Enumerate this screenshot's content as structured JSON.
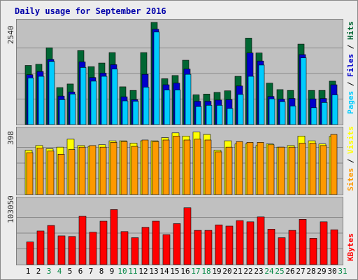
{
  "chart_data": {
    "title": "Daily usage for September 2016",
    "x": [
      1,
      2,
      3,
      4,
      5,
      6,
      7,
      8,
      9,
      10,
      11,
      12,
      13,
      14,
      15,
      16,
      17,
      18,
      19,
      20,
      21,
      22,
      23,
      24,
      25,
      26,
      27,
      28,
      29,
      30,
      31
    ],
    "weekend_days": [
      3,
      4,
      10,
      11,
      17,
      18,
      24,
      25,
      31
    ],
    "colors": {
      "hits": "#006633",
      "files": "#0000cc",
      "pages": "#00ccff",
      "visits": "#ffff00",
      "sites": "#ff9900",
      "kbytes": "#ff0000",
      "weekday_label": "#000000",
      "weekend_label": "#008844"
    },
    "charts": [
      {
        "type": "bar",
        "axis_label": "2540",
        "ylim": [
          0,
          2540
        ],
        "series": [
          {
            "name": "Hits",
            "values": [
              1470,
              1500,
              1910,
              920,
              1010,
              1840,
              1440,
              1530,
              1790,
              940,
              850,
              1790,
              2540,
              1140,
              1220,
              1600,
              740,
              760,
              800,
              840,
              1200,
              2150,
              1780,
              1030,
              870,
              850,
              2000,
              850,
              850,
              1080
            ]
          },
          {
            "name": "Files",
            "values": [
              1240,
              1320,
              1620,
              710,
              810,
              1560,
              1170,
              1280,
              1490,
              690,
              620,
              1250,
              2370,
              990,
              1030,
              1380,
              580,
              580,
              610,
              620,
              960,
              1780,
              1580,
              700,
              630,
              650,
              1740,
              640,
              650,
              990
            ]
          },
          {
            "name": "Pages",
            "values": [
              1160,
              1200,
              1570,
              620,
              760,
              1420,
              1080,
              1200,
              1380,
              590,
              580,
              930,
              2300,
              860,
              860,
              1250,
              450,
              480,
              480,
              400,
              750,
              1200,
              1480,
              640,
              570,
              460,
              1660,
              420,
              550,
              740
            ]
          }
        ]
      },
      {
        "type": "bar",
        "axis_label": "398",
        "ylim": [
          0,
          398
        ],
        "series": [
          {
            "name": "Visits",
            "values": [
              280,
              310,
              290,
              300,
              350,
              310,
              305,
              315,
              340,
              340,
              325,
              340,
              340,
              360,
              390,
              370,
              395,
              380,
              280,
              340,
              320,
              320,
              310,
              320,
              300,
              310,
              370,
              340,
              320,
              368
            ]
          },
          {
            "name": "Sites",
            "values": [
              265,
              295,
              275,
              255,
              285,
              300,
              310,
              300,
              330,
              335,
              305,
              345,
              335,
              345,
              370,
              345,
              350,
              345,
              270,
              300,
              335,
              330,
              330,
              315,
              300,
              300,
              325,
              325,
              310,
              380
            ]
          }
        ]
      },
      {
        "type": "bar",
        "axis_label": "103050",
        "ylim": [
          0,
          103050
        ],
        "series": [
          {
            "name": "KBytes",
            "values": [
              37000,
              55000,
              64000,
              47000,
              46000,
              79000,
              53000,
              71000,
              90000,
              54000,
              44000,
              61000,
              71000,
              49000,
              67000,
              93000,
              56000,
              56000,
              65000,
              63000,
              72000,
              70000,
              78000,
              58000,
              44000,
              56000,
              74000,
              43000,
              70000,
              57000
            ]
          }
        ]
      }
    ],
    "vertical_labels": {
      "top": [
        {
          "text": "Pages",
          "color": "#00ccff"
        },
        {
          "text": " / ",
          "color": "#000000"
        },
        {
          "text": "Files",
          "color": "#0000cc"
        },
        {
          "text": " / ",
          "color": "#000000"
        },
        {
          "text": "Hits",
          "color": "#006633"
        }
      ],
      "middle": [
        {
          "text": "Sites",
          "color": "#ff9900"
        },
        {
          "text": " / ",
          "color": "#000000"
        },
        {
          "text": "Visits",
          "color": "#ffff00"
        }
      ],
      "bottom": [
        {
          "text": "KBytes",
          "color": "#ff0000"
        }
      ]
    }
  }
}
